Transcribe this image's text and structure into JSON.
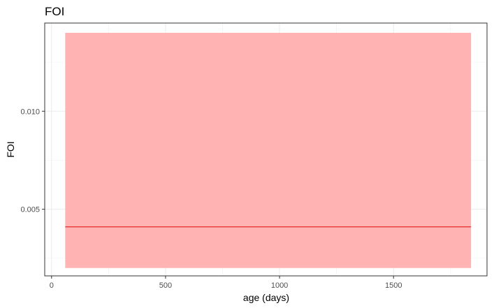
{
  "chart_data": {
    "type": "area",
    "title": "FOI",
    "xlabel": "age (days)",
    "ylabel": "FOI",
    "xlim": [
      -30,
      1910
    ],
    "ylim": [
      0.0016,
      0.0145
    ],
    "x_ticks": [
      0,
      500,
      1000,
      1500
    ],
    "x_tick_labels": [
      "0",
      "500",
      "1000",
      "1500"
    ],
    "y_ticks": [
      0.005,
      0.01
    ],
    "y_tick_labels": [
      "0.005",
      "0.010"
    ],
    "grid": true,
    "legend": "none",
    "series": [
      {
        "type": "ribbon",
        "x": [
          60,
          1840
        ],
        "lower": [
          0.002,
          0.002
        ],
        "upper": [
          0.014,
          0.014
        ],
        "color": "#ffb3b3"
      },
      {
        "type": "line",
        "x": [
          60,
          1840
        ],
        "y": [
          0.0041,
          0.0041
        ],
        "color": "#e31a1c"
      }
    ]
  }
}
